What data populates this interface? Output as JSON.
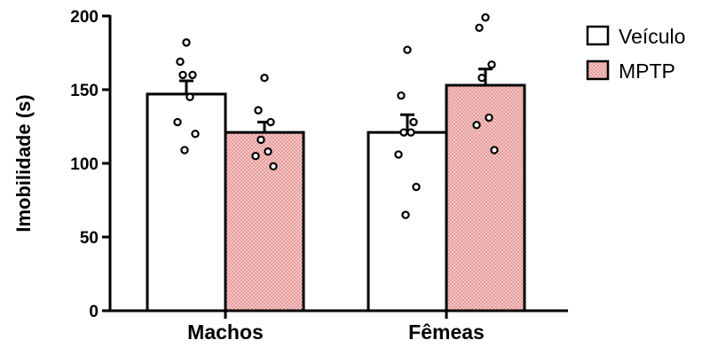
{
  "chart_data": {
    "type": "bar",
    "ylabel": "Imobilidade (s)",
    "ylim": [
      0,
      200
    ],
    "yticks": [
      0,
      50,
      100,
      150,
      200
    ],
    "categories": [
      "Machos",
      "Fêmeas"
    ],
    "legend_position": "top-right",
    "colors": {
      "Veículo": "#ffffff",
      "MPTP": "#f4c4c4"
    },
    "series": [
      {
        "name": "Veículo",
        "pattern": "none",
        "values": [
          147,
          121
        ],
        "sem": [
          9,
          12
        ],
        "points": [
          [
            182,
            169,
            160,
            160,
            145,
            128,
            120,
            109
          ],
          [
            177,
            146,
            128,
            121,
            121,
            106,
            84,
            65
          ]
        ]
      },
      {
        "name": "MPTP",
        "pattern": "crosshatch",
        "values": [
          121,
          153
        ],
        "sem": [
          7,
          11
        ],
        "points": [
          [
            158,
            136,
            128,
            116,
            108,
            105,
            98
          ],
          [
            199,
            192,
            167,
            158,
            131,
            126,
            109
          ]
        ]
      }
    ]
  }
}
